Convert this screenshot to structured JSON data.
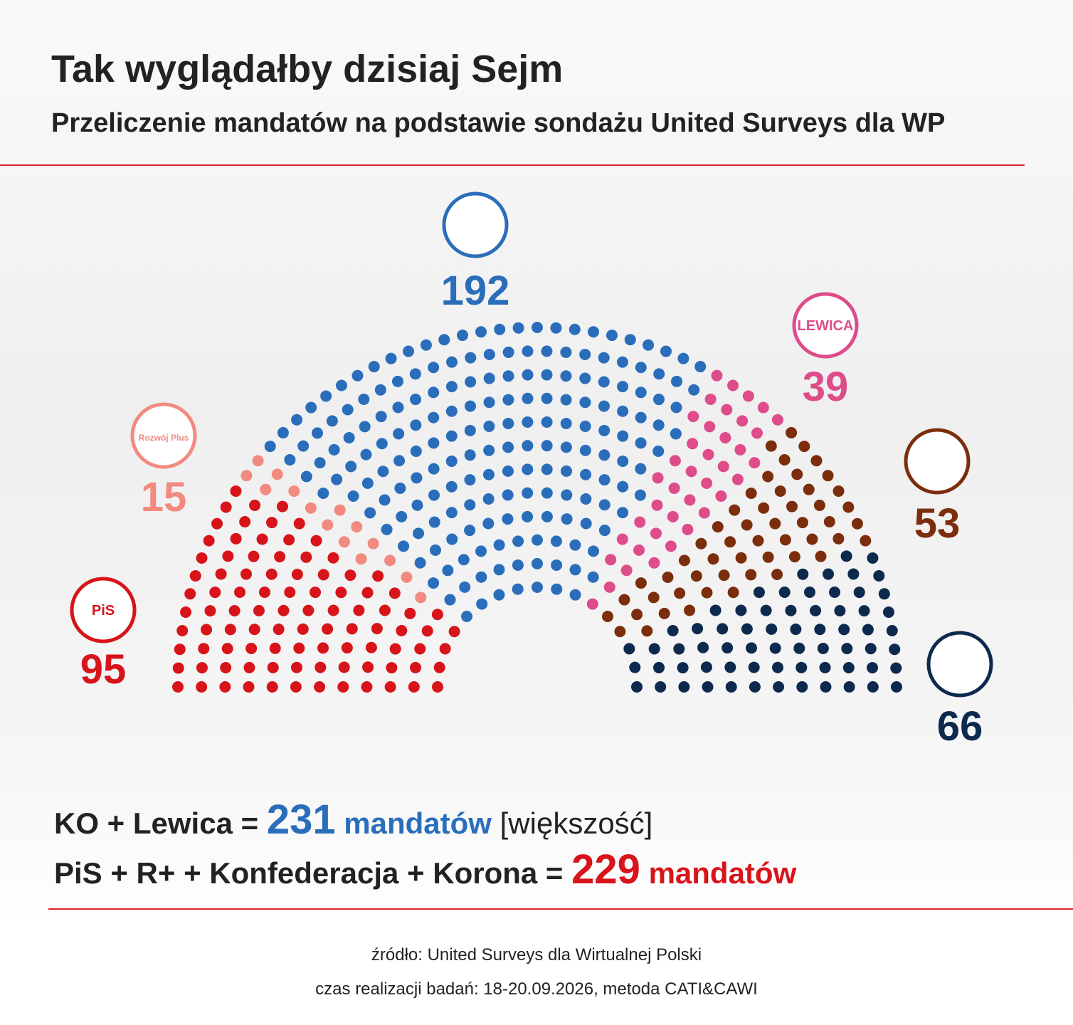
{
  "header": {
    "title": "Tak wyglądałby dzisiaj Sejm",
    "subtitle": "Przeliczenie mandatów na podstawie sondażu United Surveys dla WP"
  },
  "chart_data": {
    "type": "parliament",
    "series": [
      {
        "color": "#d7141a",
        "value": 95,
        "logo_text": "PiS"
      },
      {
        "color": "#f28a80",
        "value": 15,
        "logo_text": "Rozwój Plus"
      },
      {
        "color": "#2a6ebb",
        "value": 192
      },
      {
        "color": "#de4c8a",
        "value": 39,
        "logo_text": "LEWICA"
      },
      {
        "color": "#7b2d0c",
        "value": 53
      },
      {
        "color": "#0d2a4e",
        "value": 66
      }
    ]
  },
  "summary": [
    {
      "parties": "KO + Lewica =",
      "total": 231,
      "unit": "mandatów",
      "note": "[większość]"
    },
    {
      "parties": "PiS + R+ + Konfederacja + Korona =",
      "total": 229,
      "unit": "mandatów"
    }
  ],
  "footer": {
    "source": "źródło: United Surveys dla Wirtualnej Polski",
    "method": "czas realizacji badań: 18-20.09.2026, metoda CATI&CAWI"
  }
}
